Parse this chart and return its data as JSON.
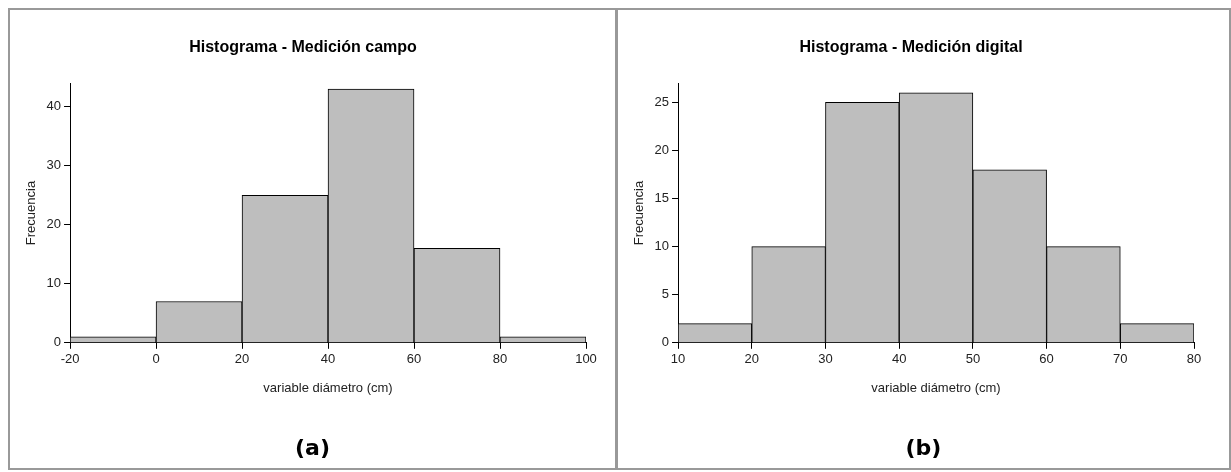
{
  "chart_data": [
    {
      "type": "histogram",
      "title": "Histograma - Medición campo",
      "xlabel": "variable diámetro (cm)",
      "ylabel": "Frecuencia",
      "bins": [
        -20,
        0,
        20,
        40,
        60,
        80,
        100
      ],
      "values": [
        1,
        7,
        25,
        43,
        16,
        1
      ],
      "color": "#bebebe",
      "xlim": [
        -20,
        100
      ],
      "xticks": [
        -20,
        0,
        20,
        40,
        60,
        80,
        100
      ],
      "ylim": [
        0,
        44
      ],
      "yticks": [
        0,
        10,
        20,
        30,
        40
      ],
      "grid": false,
      "legend": false,
      "annotations": [
        "(a)"
      ]
    },
    {
      "type": "histogram",
      "title": "Histograma - Medición digital",
      "xlabel": "variable diámetro (cm)",
      "ylabel": "Frecuencia",
      "bins": [
        10,
        20,
        30,
        40,
        50,
        60,
        70,
        80
      ],
      "values": [
        2,
        10,
        25,
        26,
        18,
        10,
        2
      ],
      "color": "#bebebe",
      "xlim": [
        10,
        80
      ],
      "xticks": [
        10,
        20,
        30,
        40,
        50,
        60,
        70,
        80
      ],
      "ylim": [
        0,
        27
      ],
      "yticks": [
        0,
        5,
        10,
        15,
        20,
        25
      ],
      "grid": false,
      "legend": false,
      "annotations": [
        "(b)"
      ]
    }
  ]
}
